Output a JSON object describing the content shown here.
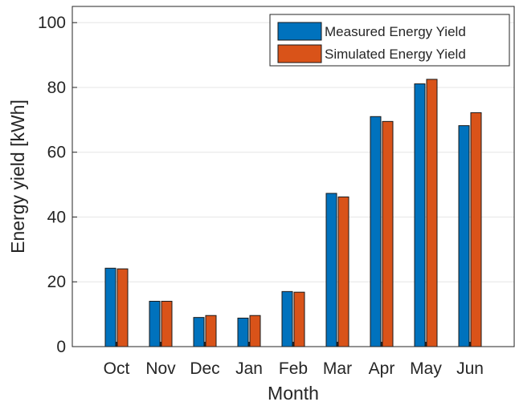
{
  "chart_data": {
    "type": "bar",
    "title": "",
    "xlabel": "Month",
    "ylabel": "Energy yield [kWh]",
    "categories": [
      "Oct",
      "Nov",
      "Dec",
      "Jan",
      "Feb",
      "Mar",
      "Apr",
      "May",
      "Jun"
    ],
    "ylim": [
      0,
      105
    ],
    "yticks": [
      0,
      20,
      40,
      60,
      80,
      100
    ],
    "grid": true,
    "legend_position": "top-right",
    "series": [
      {
        "name": "Measured Energy Yield",
        "color": "#0072BD",
        "values": [
          24.2,
          14.0,
          9.0,
          8.8,
          17.0,
          47.3,
          71.0,
          81.1,
          68.2
        ]
      },
      {
        "name": "Simulated Energy Yield",
        "color": "#D95319",
        "values": [
          24.0,
          14.0,
          9.6,
          9.6,
          16.8,
          46.2,
          69.5,
          82.5,
          72.2
        ]
      }
    ]
  }
}
